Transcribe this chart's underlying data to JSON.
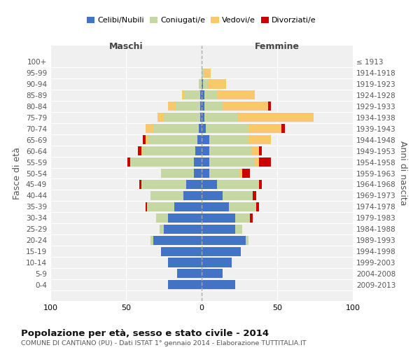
{
  "age_groups": [
    "0-4",
    "5-9",
    "10-14",
    "15-19",
    "20-24",
    "25-29",
    "30-34",
    "35-39",
    "40-44",
    "45-49",
    "50-54",
    "55-59",
    "60-64",
    "65-69",
    "70-74",
    "75-79",
    "80-84",
    "85-89",
    "90-94",
    "95-99",
    "100+"
  ],
  "birth_years": [
    "2009-2013",
    "2004-2008",
    "1999-2003",
    "1994-1998",
    "1989-1993",
    "1984-1988",
    "1979-1983",
    "1974-1978",
    "1969-1973",
    "1964-1968",
    "1959-1963",
    "1954-1958",
    "1949-1953",
    "1944-1948",
    "1939-1943",
    "1934-1938",
    "1929-1933",
    "1924-1928",
    "1919-1923",
    "1914-1918",
    "≤ 1913"
  ],
  "maschi": {
    "celibi": [
      22,
      16,
      22,
      27,
      32,
      25,
      22,
      18,
      12,
      10,
      5,
      5,
      4,
      3,
      2,
      1,
      1,
      1,
      0,
      0,
      0
    ],
    "coniugati": [
      0,
      0,
      0,
      0,
      2,
      3,
      8,
      18,
      22,
      30,
      22,
      42,
      35,
      32,
      30,
      24,
      16,
      10,
      2,
      0,
      0
    ],
    "vedovi": [
      0,
      0,
      0,
      0,
      0,
      0,
      0,
      0,
      0,
      0,
      0,
      0,
      1,
      2,
      5,
      4,
      5,
      2,
      0,
      0,
      0
    ],
    "divorziati": [
      0,
      0,
      0,
      0,
      0,
      0,
      0,
      1,
      0,
      1,
      0,
      2,
      2,
      2,
      0,
      0,
      0,
      0,
      0,
      0,
      0
    ]
  },
  "femmine": {
    "nubili": [
      22,
      14,
      20,
      26,
      29,
      22,
      22,
      18,
      14,
      10,
      5,
      5,
      5,
      5,
      3,
      2,
      2,
      2,
      1,
      0,
      0
    ],
    "coniugate": [
      0,
      0,
      0,
      0,
      2,
      5,
      10,
      18,
      20,
      28,
      20,
      30,
      28,
      26,
      28,
      22,
      12,
      8,
      3,
      2,
      0
    ],
    "vedove": [
      0,
      0,
      0,
      0,
      0,
      0,
      0,
      0,
      0,
      0,
      2,
      3,
      5,
      15,
      22,
      50,
      30,
      25,
      12,
      4,
      0
    ],
    "divorziate": [
      0,
      0,
      0,
      0,
      0,
      0,
      2,
      2,
      2,
      2,
      5,
      8,
      2,
      0,
      2,
      0,
      2,
      0,
      0,
      0,
      0
    ]
  },
  "colors": {
    "celibi": "#4472c4",
    "coniugati": "#c5d8a4",
    "vedovi": "#f8c96a",
    "divorziati": "#cc0000"
  },
  "xlim": 100,
  "title": "Popolazione per età, sesso e stato civile - 2014",
  "subtitle": "COMUNE DI CANTIANO (PU) - Dati ISTAT 1° gennaio 2014 - Elaborazione TUTTITALIA.IT",
  "ylabel_left": "Fasce di età",
  "ylabel_right": "Anni di nascita",
  "xlabel_left": "Maschi",
  "xlabel_right": "Femmine"
}
